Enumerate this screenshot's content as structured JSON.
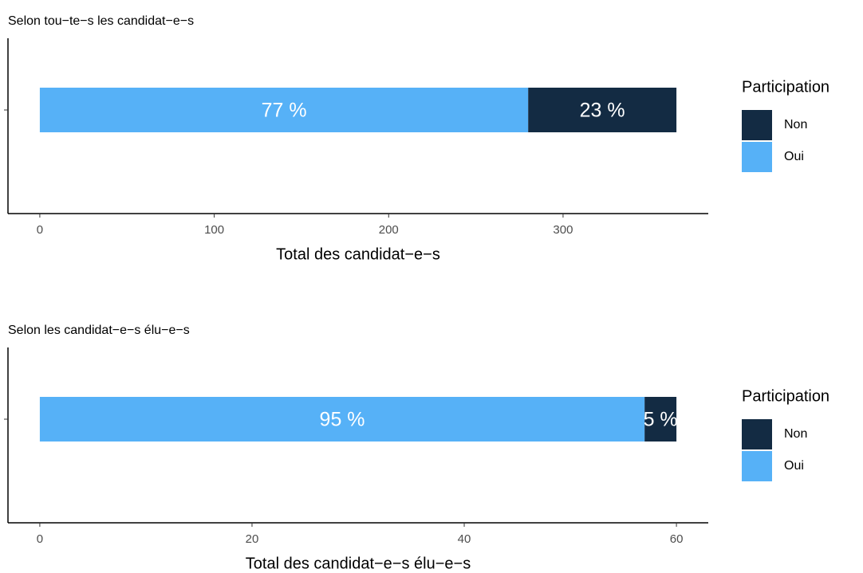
{
  "chart_data": [
    {
      "type": "bar",
      "orientation": "horizontal",
      "stacked": true,
      "title": "Selon tou−te−s les candidat−e−s",
      "xlabel": "Total des candidat−e−s",
      "legend_title": "Participation",
      "categories": [
        null
      ],
      "series": [
        {
          "name": "Non",
          "color": "#132b43",
          "values": [
            85
          ],
          "percent_values": [
            23
          ],
          "percent_labels": [
            "23 %"
          ]
        },
        {
          "name": "Oui",
          "color": "#56b1f7",
          "values": [
            280
          ],
          "percent_values": [
            77
          ],
          "percent_labels": [
            "77 %"
          ]
        }
      ],
      "xlim": [
        -18.25,
        383.25
      ],
      "xticks": [
        0,
        100,
        200,
        300
      ]
    },
    {
      "type": "bar",
      "orientation": "horizontal",
      "stacked": true,
      "title": "Selon les candidat−e−s élu−e−s",
      "xlabel": "Total des candidat−e−s élu−e−s",
      "legend_title": "Participation",
      "categories": [
        null
      ],
      "series": [
        {
          "name": "Non",
          "color": "#132b43",
          "values": [
            3
          ],
          "percent_values": [
            5
          ],
          "percent_labels": [
            "5 %"
          ]
        },
        {
          "name": "Oui",
          "color": "#56b1f7",
          "values": [
            57
          ],
          "percent_values": [
            95
          ],
          "percent_labels": [
            "95 %"
          ]
        }
      ],
      "xlim": [
        -3,
        63
      ],
      "xticks": [
        0,
        20,
        40,
        60
      ]
    }
  ]
}
